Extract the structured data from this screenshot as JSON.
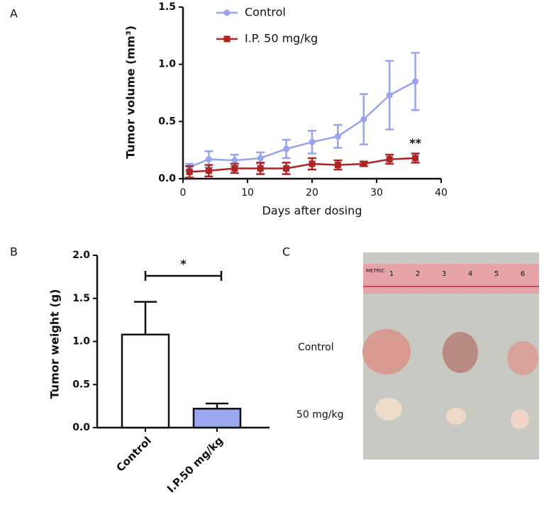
{
  "chart_data": [
    {
      "type": "line",
      "panel_label": "A",
      "xlabel": "Days after dosing",
      "ylabel": "Tumor volume (mm³)",
      "x": [
        1,
        4,
        8,
        12,
        16,
        20,
        24,
        28,
        32,
        36
      ],
      "series": [
        {
          "name": "Control",
          "color": "#98a4ee",
          "values": [
            0.1,
            0.17,
            0.16,
            0.18,
            0.26,
            0.32,
            0.37,
            0.52,
            0.73,
            0.85
          ],
          "errors": [
            0.03,
            0.07,
            0.05,
            0.05,
            0.08,
            0.1,
            0.1,
            0.22,
            0.3,
            0.25
          ]
        },
        {
          "name": "I.P. 50 mg/kg",
          "color": "#ae2424",
          "values": [
            0.06,
            0.07,
            0.09,
            0.09,
            0.09,
            0.13,
            0.12,
            0.13,
            0.17,
            0.18
          ],
          "errors": [
            0.05,
            0.05,
            0.04,
            0.05,
            0.05,
            0.05,
            0.04,
            0.02,
            0.04,
            0.04
          ]
        }
      ],
      "annotation": "**",
      "xlim": [
        0,
        40
      ],
      "xticks": [
        0,
        10,
        20,
        30,
        40
      ],
      "ylim": [
        0,
        1.5
      ],
      "yticks": [
        {
          "value": 0,
          "label": "0.0"
        },
        0.5,
        {
          "value": 1,
          "label": "1.0"
        },
        1.5
      ]
    },
    {
      "type": "bar",
      "panel_label": "B",
      "ylabel": "Tumor weight (g)",
      "categories": [
        "Control",
        "I.P.50 mg/kg"
      ],
      "values": [
        1.08,
        0.22
      ],
      "errors": [
        0.38,
        0.06
      ],
      "colors": [
        "#ffffff",
        "#9aa6f0"
      ],
      "annotation": "*",
      "ylim": [
        0,
        2
      ],
      "yticks": [
        {
          "value": 0,
          "label": "0.0"
        },
        0.5,
        {
          "value": 1,
          "label": "1.0"
        },
        1.5,
        {
          "value": 2,
          "label": "2.0"
        }
      ]
    }
  ],
  "photo": {
    "panel_label": "C",
    "ruler_text": "METRIC",
    "ruler_labels": [
      "1",
      "2",
      "3",
      "4",
      "5",
      "6"
    ],
    "row_labels": [
      "Control",
      "50 mg/kg"
    ]
  }
}
